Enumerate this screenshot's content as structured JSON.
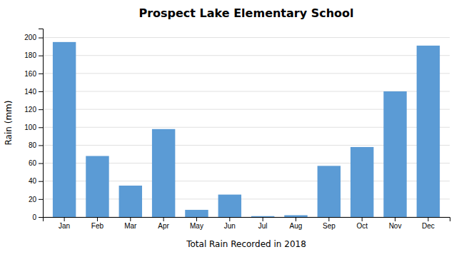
{
  "chart_data": {
    "type": "bar",
    "title": "Prospect Lake Elementary School",
    "xlabel": "Total Rain Recorded in 2018",
    "ylabel": "Rain (mm)",
    "categories": [
      "Jan",
      "Feb",
      "Mar",
      "Apr",
      "May",
      "Jun",
      "Jul",
      "Aug",
      "Sep",
      "Oct",
      "Nov",
      "Dec"
    ],
    "values": [
      195,
      68,
      35,
      98,
      8,
      25,
      1,
      2,
      57,
      78,
      140,
      191
    ],
    "color": "#5b9bd5",
    "ylim": [
      0,
      210
    ],
    "yticks": [
      0,
      20,
      40,
      60,
      80,
      100,
      120,
      140,
      160,
      180,
      200
    ],
    "grid": true
  }
}
